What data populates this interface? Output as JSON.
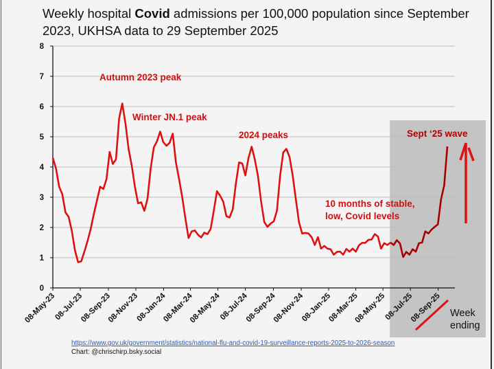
{
  "title": {
    "prefix": "Weekly hospital ",
    "bold": "Covid",
    "suffix": " admissions per 100,000 population since September 2023, UKHSA data to 29 September 2025"
  },
  "footer": {
    "source_url": "https://www.gov.uk/government/statistics/national-flu-and-covid-19-surveillance-reports-2025-to-2026-season",
    "credit": "Chart: @chrischirp.bsky.social"
  },
  "chart_data": {
    "type": "line",
    "title": "Weekly hospital Covid admissions per 100,000 population since September 2023, UKHSA data to 29 September 2025",
    "xlabel": "Week ending",
    "ylabel": "",
    "ylim": [
      0,
      8
    ],
    "yticks": [
      0,
      1,
      2,
      3,
      4,
      5,
      6,
      7,
      8
    ],
    "grid": true,
    "x_start": "08-May-23",
    "x_step": "1 week",
    "xtick_labels": [
      "08-May-23",
      "08-Jul-23",
      "08-Sep-23",
      "08-Nov-23",
      "08-Jan-24",
      "08-Mar-24",
      "08-May-24",
      "08-Jul-24",
      "08-Sep-24",
      "08-Nov-24",
      "08-Jan-25",
      "08-Mar-25",
      "08-May-25",
      "08-Jul-25",
      "08-Sep-25"
    ],
    "xtick_weeks": [
      0,
      8.7,
      17.6,
      26.3,
      35.1,
      43.6,
      52.3,
      61,
      69.9,
      78.7,
      87.4,
      96,
      104.6,
      113.3,
      122.1
    ],
    "series": [
      {
        "name": "Weekly Covid admissions per 100,000",
        "color": "#dd1111",
        "values": [
          4.3,
          3.95,
          3.35,
          3.1,
          2.5,
          2.35,
          1.9,
          1.25,
          0.85,
          0.88,
          1.2,
          1.55,
          1.95,
          2.45,
          2.9,
          3.35,
          3.27,
          3.6,
          4.5,
          4.1,
          4.25,
          5.6,
          6.1,
          5.45,
          4.6,
          4.05,
          3.35,
          2.8,
          2.83,
          2.55,
          2.95,
          3.95,
          4.65,
          4.85,
          5.17,
          4.82,
          4.7,
          4.8,
          5.1,
          4.15,
          3.6,
          3.0,
          2.3,
          1.65,
          1.87,
          1.9,
          1.76,
          1.67,
          1.83,
          1.78,
          1.95,
          2.55,
          3.2,
          3.05,
          2.85,
          2.37,
          2.33,
          2.6,
          3.45,
          4.15,
          4.12,
          3.72,
          4.3,
          4.67,
          4.25,
          3.7,
          2.85,
          2.18,
          2.02,
          2.13,
          2.2,
          2.55,
          3.7,
          4.48,
          4.6,
          4.33,
          3.72,
          2.93,
          2.17,
          1.8,
          1.82,
          1.8,
          1.68,
          1.42,
          1.68,
          1.3,
          1.39,
          1.3,
          1.28,
          1.1,
          1.19,
          1.2,
          1.1,
          1.29,
          1.2,
          1.3,
          1.2,
          1.41,
          1.49,
          1.49,
          1.59,
          1.6,
          1.78,
          1.7,
          1.3,
          1.48,
          1.42,
          1.5,
          1.42,
          1.58,
          1.47,
          1.02,
          1.19,
          1.1,
          1.28,
          1.2,
          1.48,
          1.5,
          1.87,
          1.8,
          1.93,
          2.02,
          2.1,
          2.93,
          3.39,
          4.68
        ]
      }
    ],
    "highlight_from_week": 107,
    "annotations": [
      {
        "text": "Autumn 2023 peak",
        "color": "#cc1111"
      },
      {
        "text": "Winter JN.1 peak",
        "color": "#cc1111"
      },
      {
        "text": "2024 peaks",
        "color": "#cc1111"
      },
      {
        "text": "10 months of stable,",
        "color": "#cc1111"
      },
      {
        "text": "low, Covid levels",
        "color": "#cc1111"
      },
      {
        "text": "Sept ‘25 wave",
        "color": "#b00000"
      }
    ],
    "week_ending_label": [
      "Week",
      "ending"
    ]
  }
}
